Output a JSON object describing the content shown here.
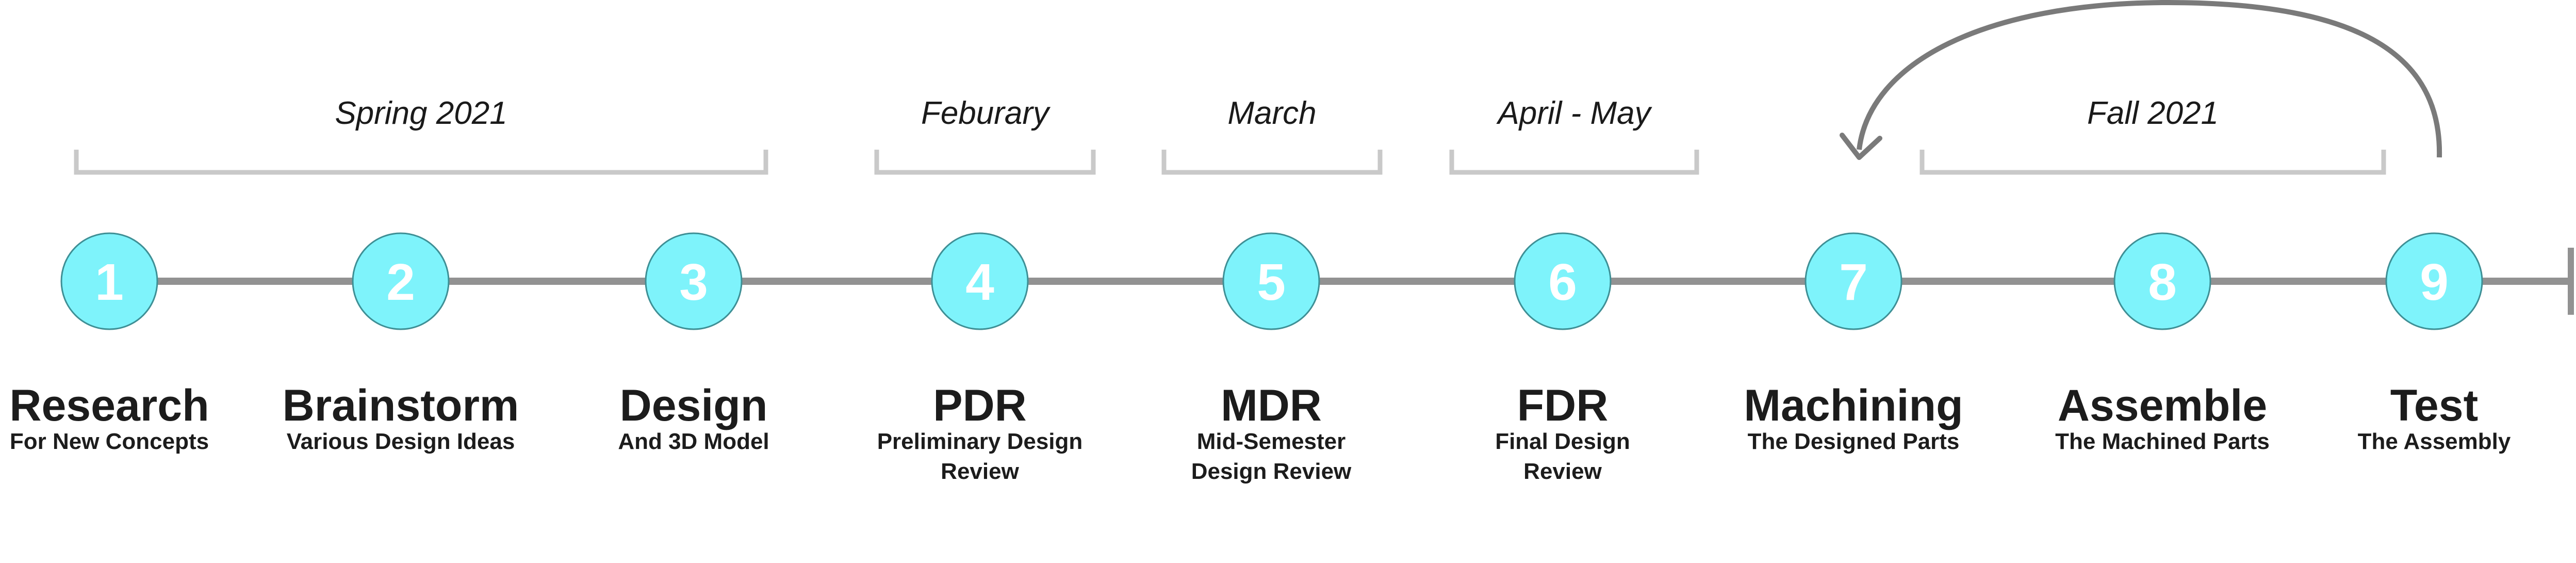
{
  "periods": [
    {
      "label": "Spring 2021"
    },
    {
      "label": "Feburary"
    },
    {
      "label": "March"
    },
    {
      "label": "April - May"
    },
    {
      "label": "Fall 2021"
    }
  ],
  "steps": [
    {
      "number": "1",
      "title": "Research",
      "subtitle_lines": [
        "For New Concepts"
      ]
    },
    {
      "number": "2",
      "title": "Brainstorm",
      "subtitle_lines": [
        "Various Design Ideas"
      ]
    },
    {
      "number": "3",
      "title": "Design",
      "subtitle_lines": [
        "And 3D Model"
      ]
    },
    {
      "number": "4",
      "title": "PDR",
      "subtitle_lines": [
        "Preliminary Design",
        "Review"
      ]
    },
    {
      "number": "5",
      "title": "MDR",
      "subtitle_lines": [
        "Mid-Semester",
        "Design Review"
      ]
    },
    {
      "number": "6",
      "title": "FDR",
      "subtitle_lines": [
        "Final Design",
        "Review"
      ]
    },
    {
      "number": "7",
      "title": "Machining",
      "subtitle_lines": [
        "The Designed Parts"
      ]
    },
    {
      "number": "8",
      "title": "Assemble",
      "subtitle_lines": [
        "The Machined Parts"
      ]
    },
    {
      "number": "9",
      "title": "Test",
      "subtitle_lines": [
        "The Assembly"
      ]
    }
  ],
  "colors": {
    "node_fill": "#7ef3fb",
    "node_stroke": "#3e8f95",
    "timeline": "#929292",
    "bracket": "#c9c9c9",
    "arrow": "#7a7a7a"
  }
}
